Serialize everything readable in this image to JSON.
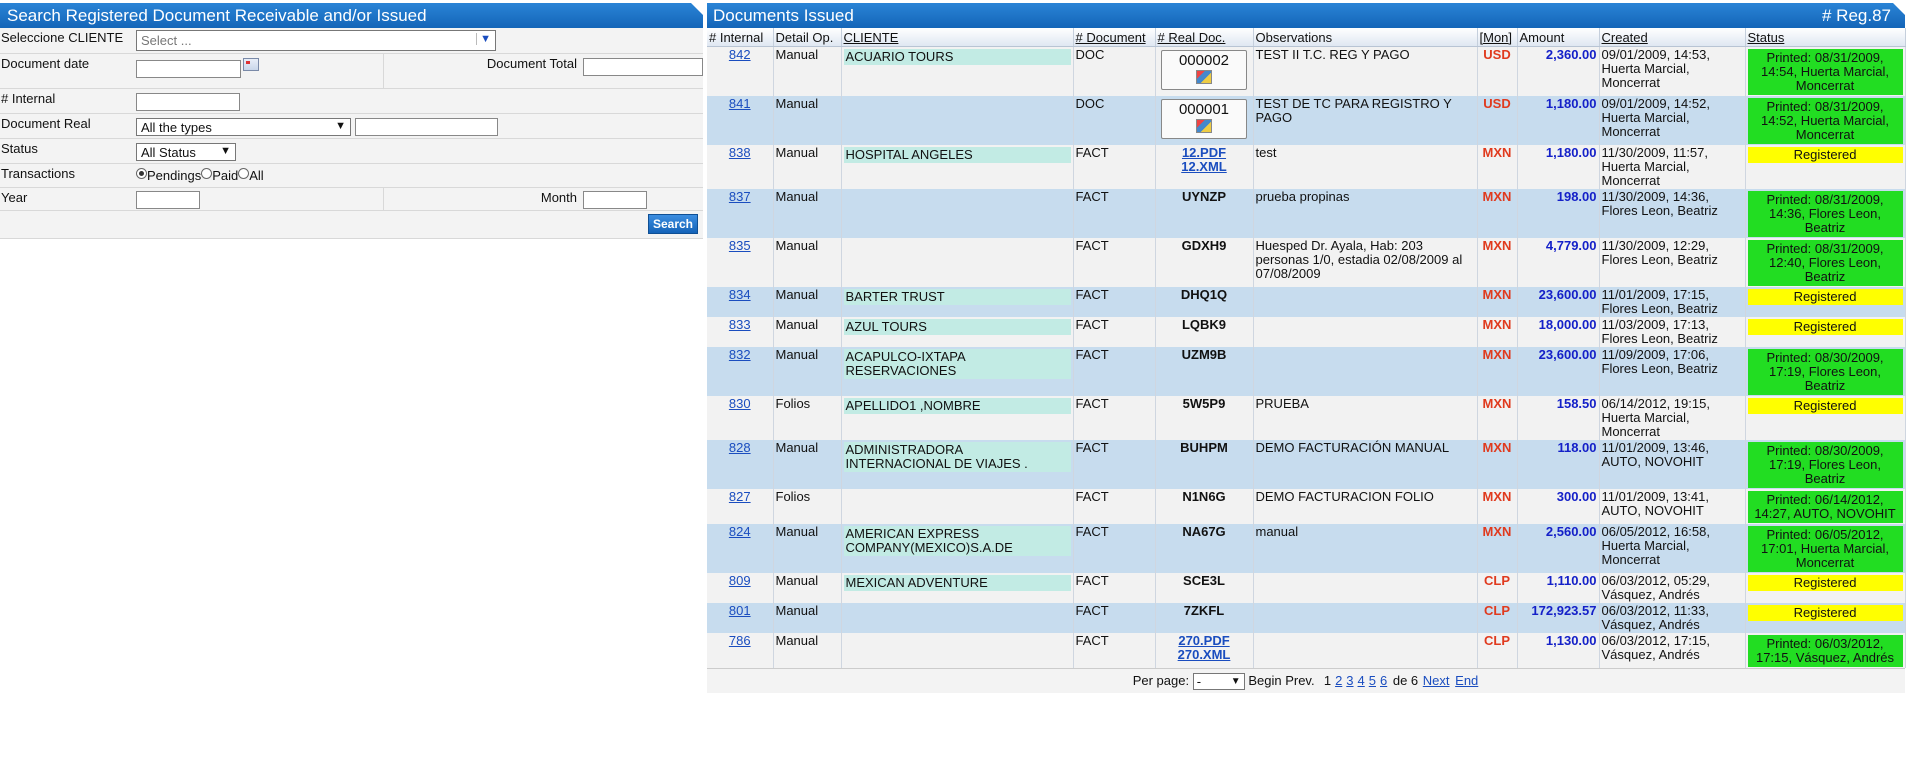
{
  "search": {
    "title": "Search Registered Document Receivable and/or Issued",
    "cliente_label": "Seleccione CLIENTE",
    "cliente_placeholder": "Select ...",
    "doc_date_label": "Document date",
    "doc_total_label": "Document Total",
    "internal_label": "# Internal",
    "doc_real_label": "Document Real",
    "doc_real_value": "All the types",
    "status_label": "Status",
    "status_value": "All Status",
    "transactions_label": "Transactions",
    "radio_pendings": "Pendings",
    "radio_paid": "Paid",
    "radio_all": "All",
    "year_label": "Year",
    "month_label": "Month",
    "search_button": "Search"
  },
  "issued": {
    "title": "Documents Issued",
    "reg_count": "# Reg.87",
    "columns": [
      "# Internal",
      "Detail Op.",
      "CLIENTE",
      "# Document",
      "# Real Doc.",
      "Observations",
      "[Mon]",
      "Amount",
      "Created",
      "Status"
    ],
    "rows": [
      {
        "internal": "842",
        "detail": "Manual",
        "cliente": "ACUARIO TOURS",
        "doc": "DOC",
        "real": "000002",
        "real_type": "box",
        "obs": "TEST II T.C. REG Y PAGO",
        "mon": "USD",
        "amount": "2,360.00",
        "created": "09/01/2009, 14:53, Huerta Marcial, Moncerrat",
        "status": "Printed: 08/31/2009, 14:54, Huerta Marcial, Moncerrat",
        "status_type": "printed"
      },
      {
        "internal": "841",
        "detail": "Manual",
        "cliente": "",
        "doc": "DOC",
        "real": "000001",
        "real_type": "box",
        "obs": "TEST DE TC PARA REGISTRO Y PAGO",
        "mon": "USD",
        "amount": "1,180.00",
        "created": "09/01/2009, 14:52, Huerta Marcial, Moncerrat",
        "status": "Printed: 08/31/2009, 14:52, Huerta Marcial, Moncerrat",
        "status_type": "printed"
      },
      {
        "internal": "838",
        "detail": "Manual",
        "cliente": "HOSPITAL ANGELES",
        "doc": "FACT",
        "real": "12.PDF",
        "real2": "12.XML",
        "real_type": "links",
        "obs": "test",
        "mon": "MXN",
        "amount": "1,180.00",
        "created": "11/30/2009, 11:57, Huerta Marcial, Moncerrat",
        "status": "Registered",
        "status_type": "registered"
      },
      {
        "internal": "837",
        "detail": "Manual",
        "cliente": "",
        "doc": "FACT",
        "real": "UYNZP",
        "real_type": "text",
        "obs": "prueba propinas",
        "mon": "MXN",
        "amount": "198.00",
        "created": "11/30/2009, 14:36, Flores Leon, Beatriz",
        "status": "Printed: 08/31/2009, 14:36, Flores Leon, Beatriz",
        "status_type": "printed"
      },
      {
        "internal": "835",
        "detail": "Manual",
        "cliente": "",
        "doc": "FACT",
        "real": "GDXH9",
        "real_type": "text",
        "obs": "Huesped Dr. Ayala, Hab: 203 personas 1/0, estadia 02/08/2009 al 07/08/2009",
        "mon": "MXN",
        "amount": "4,779.00",
        "created": "11/30/2009, 12:29, Flores Leon, Beatriz",
        "status": "Printed: 08/31/2009, 12:40, Flores Leon, Beatriz",
        "status_type": "printed"
      },
      {
        "internal": "834",
        "detail": "Manual",
        "cliente": "BARTER TRUST",
        "doc": "FACT",
        "real": "DHQ1Q",
        "real_type": "text",
        "obs": "",
        "mon": "MXN",
        "amount": "23,600.00",
        "created": "11/01/2009, 17:15, Flores Leon, Beatriz",
        "status": "Registered",
        "status_type": "registered"
      },
      {
        "internal": "833",
        "detail": "Manual",
        "cliente": "AZUL TOURS",
        "doc": "FACT",
        "real": "LQBK9",
        "real_type": "text",
        "obs": "",
        "mon": "MXN",
        "amount": "18,000.00",
        "created": "11/03/2009, 17:13, Flores Leon, Beatriz",
        "status": "Registered",
        "status_type": "registered"
      },
      {
        "internal": "832",
        "detail": "Manual",
        "cliente": "ACAPULCO-IXTAPA RESERVACIONES",
        "doc": "FACT",
        "real": "UZM9B",
        "real_type": "text",
        "obs": "",
        "mon": "MXN",
        "amount": "23,600.00",
        "created": "11/09/2009, 17:06, Flores Leon, Beatriz",
        "status": "Printed: 08/30/2009, 17:19, Flores Leon, Beatriz",
        "status_type": "printed"
      },
      {
        "internal": "830",
        "detail": "Folios",
        "cliente": "APELLIDO1 ,NOMBRE",
        "doc": "FACT",
        "real": "5W5P9",
        "real_type": "text",
        "obs": "PRUEBA",
        "mon": "MXN",
        "amount": "158.50",
        "created": "06/14/2012, 19:15, Huerta Marcial, Moncerrat",
        "status": "Registered",
        "status_type": "registered"
      },
      {
        "internal": "828",
        "detail": "Manual",
        "cliente": "ADMINISTRADORA INTERNACIONAL DE VIAJES .",
        "doc": "FACT",
        "real": "BUHPM",
        "real_type": "text",
        "obs": "DEMO FACTURACIÓN MANUAL",
        "mon": "MXN",
        "amount": "118.00",
        "created": "11/01/2009, 13:46, AUTO, NOVOHIT",
        "status": "Printed: 08/30/2009, 17:19, Flores Leon, Beatriz",
        "status_type": "printed"
      },
      {
        "internal": "827",
        "detail": "Folios",
        "cliente": "",
        "doc": "FACT",
        "real": "N1N6G",
        "real_type": "text",
        "obs": "DEMO FACTURACION FOLIO",
        "mon": "MXN",
        "amount": "300.00",
        "created": "11/01/2009, 13:41, AUTO, NOVOHIT",
        "status": "Printed: 06/14/2012, 14:27, AUTO, NOVOHIT",
        "status_type": "printed"
      },
      {
        "internal": "824",
        "detail": "Manual",
        "cliente": "AMERICAN EXPRESS COMPANY(MEXICO)S.A.DE",
        "doc": "FACT",
        "real": "NA67G",
        "real_type": "text",
        "obs": "manual",
        "mon": "MXN",
        "amount": "2,560.00",
        "created": "06/05/2012, 16:58, Huerta Marcial, Moncerrat",
        "status": "Printed: 06/05/2012, 17:01, Huerta Marcial, Moncerrat",
        "status_type": "printed"
      },
      {
        "internal": "809",
        "detail": "Manual",
        "cliente": "MEXICAN ADVENTURE",
        "doc": "FACT",
        "real": "SCE3L",
        "real_type": "text",
        "obs": "",
        "mon": "CLP",
        "amount": "1,110.00",
        "created": "06/03/2012, 05:29, Vásquez, Andrés",
        "status": "Registered",
        "status_type": "registered"
      },
      {
        "internal": "801",
        "detail": "Manual",
        "cliente": "",
        "doc": "FACT",
        "real": "7ZKFL",
        "real_type": "text",
        "obs": "",
        "mon": "CLP",
        "amount": "172,923.57",
        "created": "06/03/2012, 11:33, Vásquez, Andrés",
        "status": "Registered",
        "status_type": "registered"
      },
      {
        "internal": "786",
        "detail": "Manual",
        "cliente": "",
        "doc": "FACT",
        "real": "270.PDF",
        "real2": "270.XML",
        "real_type": "links",
        "obs": "",
        "mon": "CLP",
        "amount": "1,130.00",
        "created": "06/03/2012, 17:15, Vásquez, Andrés",
        "status": "Printed: 06/03/2012, 17:15, Vásquez, Andrés",
        "status_type": "printed"
      }
    ],
    "pager": {
      "per_page_label": "Per page:",
      "per_page_value": "-",
      "begin": "Begin",
      "prev": "Prev.",
      "pages": [
        "1",
        "2",
        "3",
        "4",
        "5",
        "6"
      ],
      "of_label": "de 6",
      "next": "Next",
      "end": "End"
    }
  },
  "colors": {
    "header_blue": "#1465b8",
    "mon_red": "#e03a1e",
    "amount_blue": "#1420c8",
    "printed_green": "#22dd22",
    "registered_yellow": "#ffff00"
  }
}
